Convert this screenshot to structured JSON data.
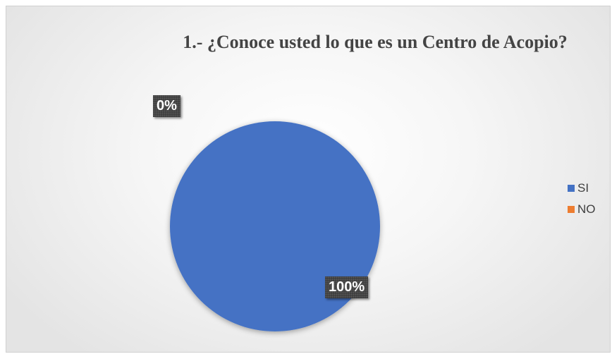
{
  "chart_data": {
    "type": "pie",
    "title": "1.- ¿Conoce usted lo que es un Centro de Acopio?",
    "categories": [
      "SI",
      "NO"
    ],
    "values": [
      100,
      0
    ],
    "data_labels": [
      "100%",
      "0%"
    ],
    "colors": [
      "#4472C4",
      "#ED7D31"
    ],
    "legend_position": "right"
  }
}
